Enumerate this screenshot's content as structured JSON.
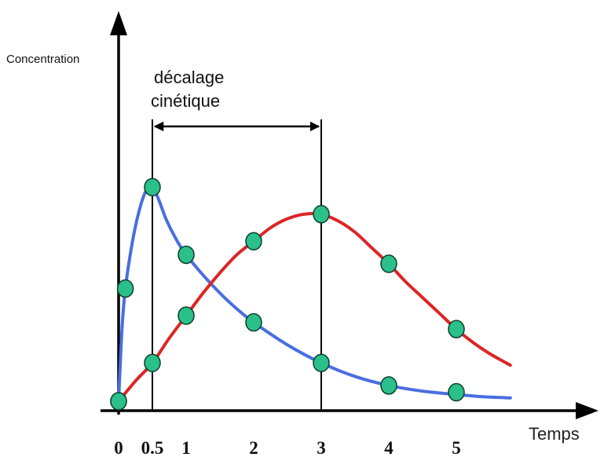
{
  "chart_data": {
    "type": "line",
    "ylabel": "Concentration",
    "xlabel": "Temps",
    "annotation": [
      "décalage",
      "cinétique"
    ],
    "tick_labels": [
      "0",
      "0.5",
      "1",
      "2",
      "3",
      "4",
      "5"
    ],
    "xlim": [
      0,
      5.8
    ],
    "ylim": [
      0,
      1
    ],
    "kinetic_lag": {
      "from": 0.5,
      "to": 3
    },
    "marker_color": "#2bbf8a",
    "series": [
      {
        "color": "#4a6ee0",
        "curve": [
          [
            0,
            0
          ],
          [
            0.05,
            0.32
          ],
          [
            0.1,
            0.5
          ],
          [
            0.2,
            0.7
          ],
          [
            0.3,
            0.84
          ],
          [
            0.4,
            0.93
          ],
          [
            0.5,
            0.95
          ],
          [
            0.6,
            0.89
          ],
          [
            0.7,
            0.81
          ],
          [
            0.85,
            0.72
          ],
          [
            1,
            0.65
          ],
          [
            1.25,
            0.56
          ],
          [
            1.5,
            0.48
          ],
          [
            1.75,
            0.41
          ],
          [
            2,
            0.35
          ],
          [
            2.5,
            0.25
          ],
          [
            3,
            0.17
          ],
          [
            3.5,
            0.11
          ],
          [
            4,
            0.07
          ],
          [
            4.5,
            0.045
          ],
          [
            5,
            0.03
          ],
          [
            5.4,
            0.02
          ],
          [
            5.8,
            0.015
          ]
        ],
        "points": [
          [
            0,
            0
          ],
          [
            0.1,
            0.5
          ],
          [
            0.5,
            0.95
          ],
          [
            1,
            0.65
          ],
          [
            2,
            0.35
          ],
          [
            3,
            0.17
          ],
          [
            4,
            0.07
          ],
          [
            5,
            0.04
          ]
        ]
      },
      {
        "color": "#dd2525",
        "curve": [
          [
            0,
            0
          ],
          [
            0.25,
            0.09
          ],
          [
            0.5,
            0.17
          ],
          [
            0.75,
            0.28
          ],
          [
            1,
            0.38
          ],
          [
            1.25,
            0.48
          ],
          [
            1.5,
            0.57
          ],
          [
            1.75,
            0.65
          ],
          [
            2,
            0.71
          ],
          [
            2.25,
            0.77
          ],
          [
            2.5,
            0.81
          ],
          [
            2.75,
            0.83
          ],
          [
            3,
            0.83
          ],
          [
            3.25,
            0.8
          ],
          [
            3.5,
            0.75
          ],
          [
            3.75,
            0.68
          ],
          [
            4,
            0.61
          ],
          [
            4.25,
            0.53
          ],
          [
            4.5,
            0.46
          ],
          [
            4.75,
            0.39
          ],
          [
            5,
            0.32
          ],
          [
            5.25,
            0.26
          ],
          [
            5.5,
            0.21
          ],
          [
            5.8,
            0.16
          ]
        ],
        "points": [
          [
            0,
            0
          ],
          [
            0.5,
            0.17
          ],
          [
            1,
            0.38
          ],
          [
            2,
            0.71
          ],
          [
            3,
            0.83
          ],
          [
            4,
            0.61
          ],
          [
            5,
            0.32
          ]
        ]
      }
    ]
  }
}
